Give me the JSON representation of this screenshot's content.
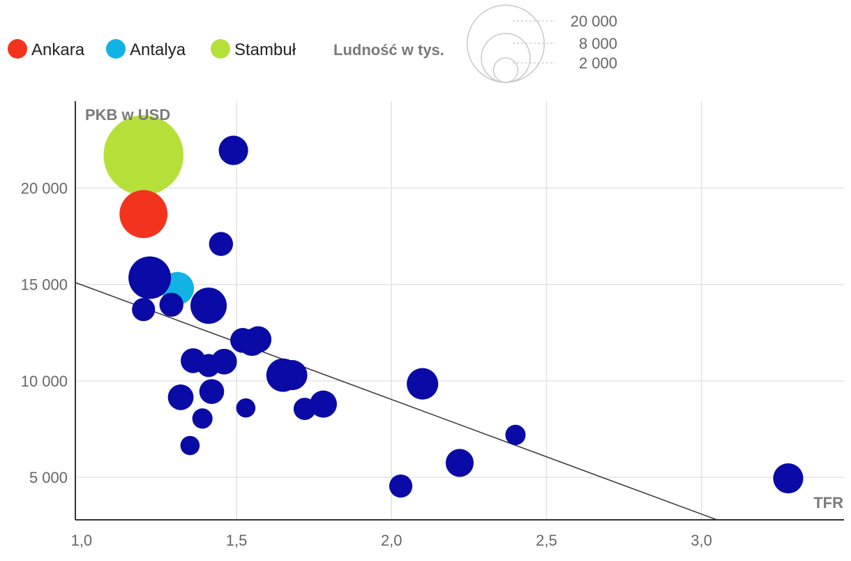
{
  "chart_data": {
    "type": "scatter",
    "xlabel": "TFR",
    "ylabel": "PKB w USD",
    "xlim": [
      0.98,
      3.46
    ],
    "ylim": [
      2800,
      24500
    ],
    "xticks": [
      1.0,
      1.5,
      2.0,
      2.5,
      3.0
    ],
    "xtick_labels": [
      "1,0",
      "1,5",
      "2,0",
      "2,5",
      "3,0"
    ],
    "yticks": [
      5000,
      10000,
      15000,
      20000
    ],
    "ytick_labels": [
      "5 000",
      "10 000",
      "15 000",
      "20 000"
    ],
    "grid": true,
    "colors": {
      "default": "#0a0aa6",
      "Ankara": "#f2341e",
      "Antalya": "#10b3e3",
      "Stambuł": "#b5e03a",
      "trend": "#333333",
      "grid": "#e2e2e2"
    },
    "legend": {
      "items": [
        {
          "name": "Ankara",
          "color": "#f2341e"
        },
        {
          "name": "Antalya",
          "color": "#10b3e3"
        },
        {
          "name": "Stambuł",
          "color": "#b5e03a"
        }
      ],
      "size_title": "Ludność w tys.",
      "sizes": [
        {
          "label": "20 000",
          "value": 20000
        },
        {
          "label": "8 000",
          "value": 8000
        },
        {
          "label": "2 000",
          "value": 2000
        }
      ]
    },
    "trendline": {
      "x": [
        0.98,
        3.05
      ],
      "y": [
        15100,
        2800
      ]
    },
    "points": [
      {
        "x": 1.2,
        "y": 21700,
        "pop": 15500,
        "group": "Stambuł"
      },
      {
        "x": 1.2,
        "y": 18650,
        "pop": 5600,
        "group": "Ankara"
      },
      {
        "x": 1.31,
        "y": 14800,
        "pop": 2600,
        "group": "Antalya"
      },
      {
        "x": 1.49,
        "y": 21950,
        "pop": 2100
      },
      {
        "x": 1.45,
        "y": 17100,
        "pop": 1400
      },
      {
        "x": 1.22,
        "y": 15350,
        "pop": 4400
      },
      {
        "x": 1.2,
        "y": 13700,
        "pop": 1300
      },
      {
        "x": 1.29,
        "y": 13950,
        "pop": 1400
      },
      {
        "x": 1.41,
        "y": 13900,
        "pop": 3200
      },
      {
        "x": 1.52,
        "y": 12100,
        "pop": 1500
      },
      {
        "x": 1.55,
        "y": 12000,
        "pop": 1800
      },
      {
        "x": 1.57,
        "y": 12150,
        "pop": 1700
      },
      {
        "x": 1.36,
        "y": 11050,
        "pop": 1500
      },
      {
        "x": 1.41,
        "y": 10800,
        "pop": 1300
      },
      {
        "x": 1.46,
        "y": 11000,
        "pop": 1600
      },
      {
        "x": 1.65,
        "y": 10300,
        "pop": 2700
      },
      {
        "x": 1.68,
        "y": 10300,
        "pop": 2200
      },
      {
        "x": 2.1,
        "y": 9850,
        "pop": 2400
      },
      {
        "x": 1.42,
        "y": 9450,
        "pop": 1500
      },
      {
        "x": 1.32,
        "y": 9150,
        "pop": 1600
      },
      {
        "x": 1.53,
        "y": 8600,
        "pop": 900
      },
      {
        "x": 1.72,
        "y": 8550,
        "pop": 1200
      },
      {
        "x": 1.78,
        "y": 8800,
        "pop": 1800
      },
      {
        "x": 1.39,
        "y": 8050,
        "pop": 1000
      },
      {
        "x": 2.4,
        "y": 7200,
        "pop": 1000
      },
      {
        "x": 1.35,
        "y": 6650,
        "pop": 900
      },
      {
        "x": 2.22,
        "y": 5750,
        "pop": 1900
      },
      {
        "x": 2.03,
        "y": 4550,
        "pop": 1300
      },
      {
        "x": 3.28,
        "y": 4950,
        "pop": 2200
      }
    ]
  }
}
